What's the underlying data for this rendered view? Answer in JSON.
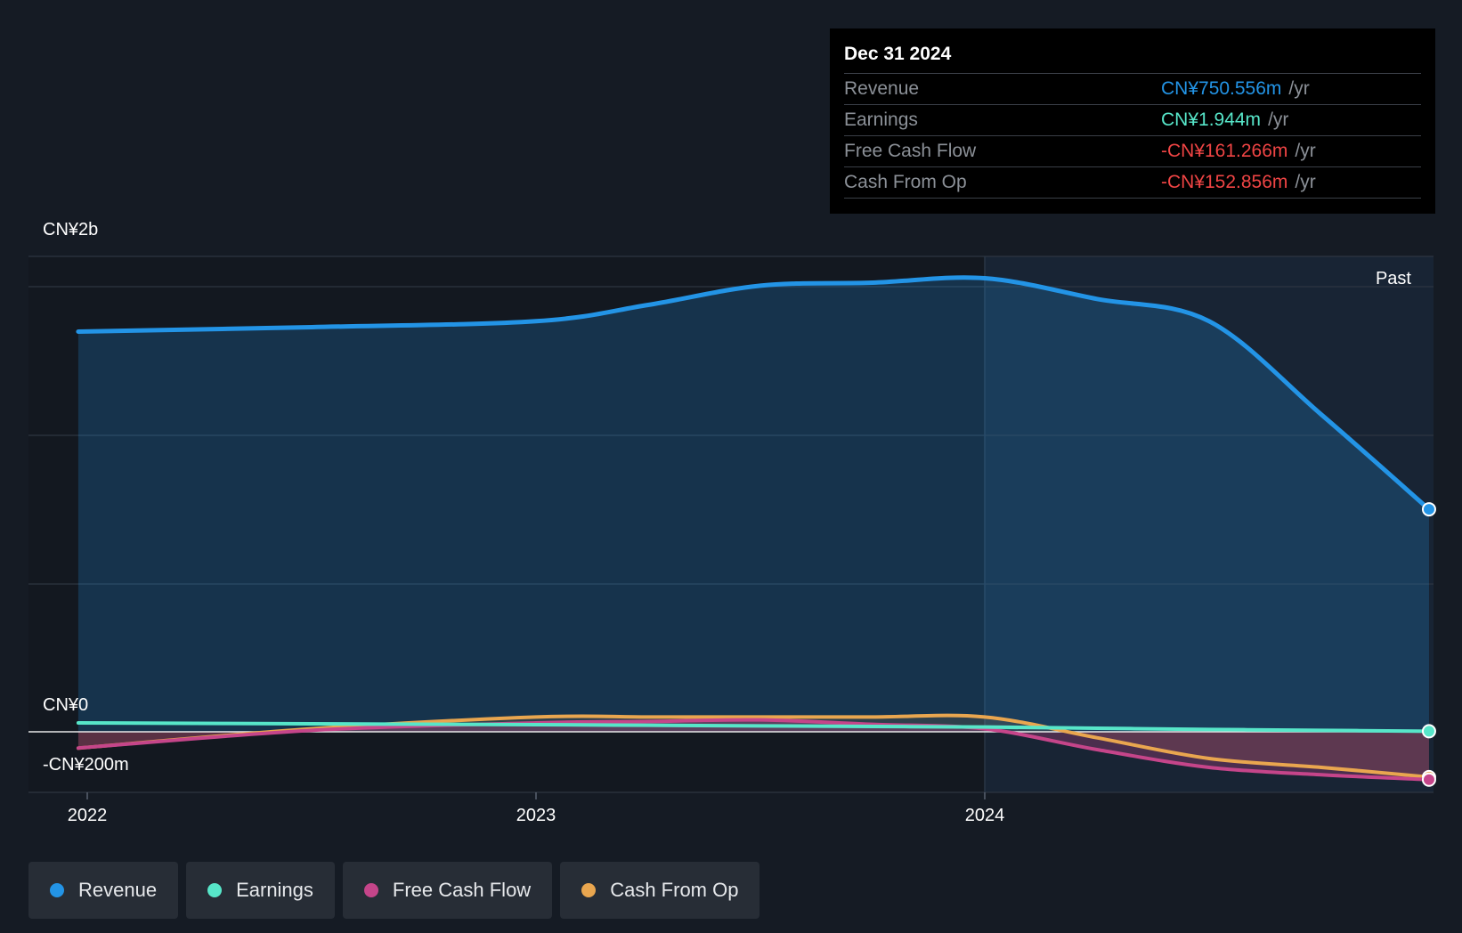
{
  "tooltip": {
    "date": "Dec 31 2024",
    "rows": [
      {
        "label": "Revenue",
        "value": "CN¥750.556m",
        "unit": "/yr",
        "color": "#2394e6"
      },
      {
        "label": "Earnings",
        "value": "CN¥1.944m",
        "unit": "/yr",
        "color": "#57e6c9"
      },
      {
        "label": "Free Cash Flow",
        "value": "-CN¥161.266m",
        "unit": "/yr",
        "color": "#ee4444"
      },
      {
        "label": "Cash From Op",
        "value": "-CN¥152.856m",
        "unit": "/yr",
        "color": "#ee4444"
      }
    ]
  },
  "legend": [
    {
      "label": "Revenue",
      "color": "#2394e6"
    },
    {
      "label": "Earnings",
      "color": "#57e6c9"
    },
    {
      "label": "Free Cash Flow",
      "color": "#c5458a"
    },
    {
      "label": "Cash From Op",
      "color": "#e9a64f"
    }
  ],
  "chart_data": {
    "type": "area",
    "past_label": "Past",
    "y_tick_labels": [
      "CN¥2b",
      "CN¥0",
      "-CN¥200m"
    ],
    "x_tick_labels": [
      "2022",
      "2023",
      "2024"
    ],
    "ylim": [
      -200,
      1600
    ],
    "grid": true,
    "legend_position": "bottom-left",
    "x": [
      2021.98,
      2022.5,
      2023.0,
      2023.25,
      2023.5,
      2023.75,
      2024.0,
      2024.25,
      2024.5,
      2024.75,
      2024.99
    ],
    "series": [
      {
        "name": "Revenue",
        "color": "#2394e6",
        "values": [
          1350,
          1365,
          1385,
          1440,
          1505,
          1515,
          1530,
          1460,
          1385,
          1070,
          750.556
        ]
      },
      {
        "name": "Earnings",
        "color": "#57e6c9",
        "values": [
          30,
          27,
          24,
          22,
          20,
          18,
          16,
          12,
          8,
          5,
          1.944
        ]
      },
      {
        "name": "Free Cash Flow",
        "color": "#c5458a",
        "values": [
          -55,
          5,
          30,
          35,
          40,
          25,
          10,
          -60,
          -120,
          -145,
          -161.266
        ]
      },
      {
        "name": "Cash From Op",
        "color": "#e9a64f",
        "values": [
          -55,
          10,
          50,
          50,
          50,
          50,
          50,
          -20,
          -90,
          -120,
          -152.856
        ]
      }
    ]
  }
}
